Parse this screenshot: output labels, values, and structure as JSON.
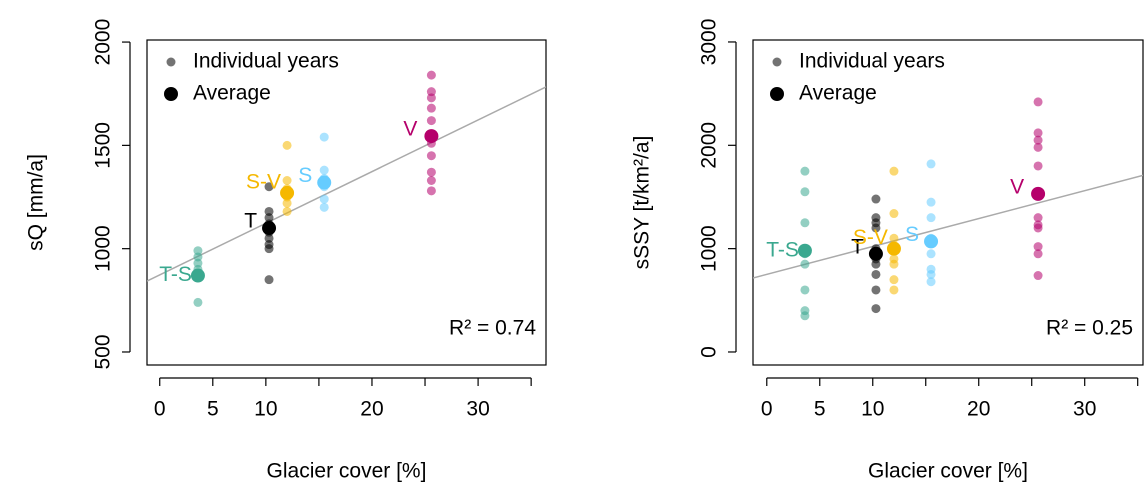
{
  "chart_data": [
    {
      "type": "scatter",
      "xlabel": "Glacier cover [%]",
      "ylabel": "sQ [mm/a]",
      "xlim": [
        -1.2,
        36.4
      ],
      "ylim": [
        437,
        2010
      ],
      "xticks": [
        0,
        5,
        10,
        20,
        30
      ],
      "xminor_ticks": [
        15,
        25,
        35
      ],
      "yticks": [
        500,
        1000,
        1500,
        2000
      ],
      "legend": {
        "position": "top-left",
        "entries": [
          "Individual years",
          "Average"
        ]
      },
      "annotation": "R² = 0.74",
      "fit": {
        "intercept": 873,
        "slope": 25
      },
      "series": [
        {
          "name": "T-S",
          "color": "#3aa88f",
          "x": 3.6,
          "values": [
            990,
            960,
            930,
            900,
            880,
            860,
            740
          ],
          "average": 870
        },
        {
          "name": "T",
          "color": "#000000",
          "x": 10.3,
          "values": [
            1300,
            1180,
            1150,
            1120,
            1100,
            1080,
            1050,
            1020,
            1000,
            850
          ],
          "average": 1100
        },
        {
          "name": "S-V",
          "color": "#f5b800",
          "x": 12.0,
          "values": [
            1500,
            1330,
            1290,
            1270,
            1250,
            1220,
            1180
          ],
          "average": 1270
        },
        {
          "name": "S",
          "color": "#66ccff",
          "x": 15.5,
          "values": [
            1540,
            1380,
            1340,
            1320,
            1300,
            1240,
            1200
          ],
          "average": 1320
        },
        {
          "name": "V",
          "color": "#b5006b",
          "x": 25.6,
          "values": [
            1840,
            1760,
            1730,
            1680,
            1620,
            1540,
            1510,
            1450,
            1370,
            1330,
            1280
          ],
          "average": 1545
        }
      ]
    },
    {
      "type": "scatter",
      "xlabel": "Glacier cover [%]",
      "ylabel": "sSSY [t/km²/a]",
      "xlim": [
        -1.3,
        35.5
      ],
      "ylim": [
        -126,
        3019
      ],
      "xticks": [
        0,
        5,
        10,
        20,
        30
      ],
      "xminor_ticks": [
        15,
        25,
        35
      ],
      "yticks": [
        0,
        1000,
        2000,
        3000
      ],
      "legend": {
        "position": "top-left",
        "entries": [
          "Individual years",
          "Average"
        ]
      },
      "annotation": "R² = 0.25",
      "fit": {
        "intercept": 751,
        "slope": 27
      },
      "series": [
        {
          "name": "T-S",
          "color": "#3aa88f",
          "x": 3.6,
          "values": [
            1750,
            1550,
            1250,
            1000,
            950,
            850,
            600,
            400,
            350
          ],
          "average": 980
        },
        {
          "name": "T",
          "color": "#000000",
          "x": 10.3,
          "values": [
            1480,
            1300,
            1250,
            1200,
            1000,
            900,
            850,
            750,
            600,
            420
          ],
          "average": 950
        },
        {
          "name": "S-V",
          "color": "#f5b800",
          "x": 12.0,
          "values": [
            1750,
            1340,
            1100,
            1000,
            900,
            850,
            700,
            600
          ],
          "average": 1000
        },
        {
          "name": "S",
          "color": "#66ccff",
          "x": 15.5,
          "values": [
            1820,
            1450,
            1300,
            1100,
            1050,
            950,
            800,
            750,
            680
          ],
          "average": 1070
        },
        {
          "name": "V",
          "color": "#b5006b",
          "x": 25.6,
          "values": [
            2420,
            2120,
            2050,
            1980,
            1800,
            1550,
            1300,
            1230,
            1200,
            1020,
            950,
            740
          ],
          "average": 1530
        }
      ]
    }
  ]
}
